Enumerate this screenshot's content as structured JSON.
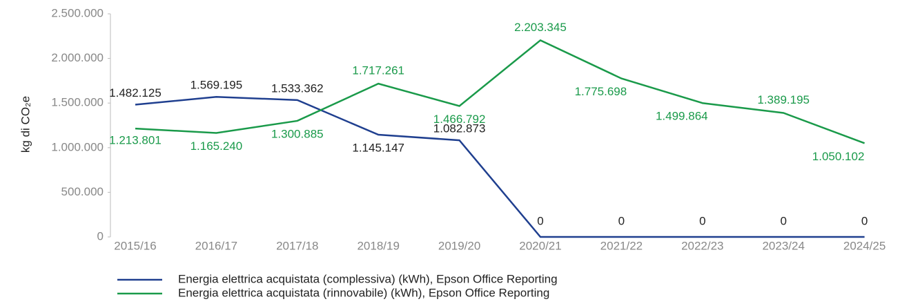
{
  "chart_data": {
    "type": "line",
    "ylabel": "kg di CO₂e",
    "categories": [
      "2015/16",
      "2016/17",
      "2017/18",
      "2018/19",
      "2019/20",
      "2020/21",
      "2021/22",
      "2022/23",
      "2023/24",
      "2024/25"
    ],
    "series": [
      {
        "name": "Energia elettrica acquistata (complessiva) (kWh), Epson Office Reporting",
        "color": "#1f3f8f",
        "values": [
          1482125,
          1569195,
          1533362,
          1145147,
          1082873,
          0,
          0,
          0,
          0,
          0
        ],
        "value_labels": [
          "1.482.125",
          "1.569.195",
          "1.533.362",
          "1.145.147",
          "1.082.873",
          "0",
          "0",
          "0",
          "0",
          "0"
        ]
      },
      {
        "name": "Energia elettrica acquistata (rinnovabile) (kWh), Epson Office Reporting",
        "color": "#1a9a4a",
        "values": [
          1213801,
          1165240,
          1300885,
          1717261,
          1466792,
          2203345,
          1775698,
          1499864,
          1389195,
          1050102
        ],
        "value_labels": [
          "1.213.801",
          "1.165.240",
          "1.300.885",
          "1.717.261",
          "1.466.792",
          "2.203.345",
          "1.775.698",
          "1.499.864",
          "1.389.195",
          "1.050.102"
        ]
      }
    ],
    "ylim": [
      0,
      2500000
    ],
    "yticks": [
      0,
      {
        "value": 500000,
        "label": "500.000"
      },
      {
        "value": 1000000,
        "label": "1.000.000"
      },
      {
        "value": 1500000,
        "label": "1.500.000"
      },
      {
        "value": 2000000,
        "label": "2.000.000"
      },
      {
        "value": 2500000,
        "label": "2.500.000"
      }
    ],
    "grid": false
  }
}
